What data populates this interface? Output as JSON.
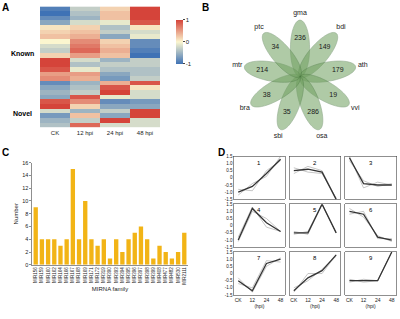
{
  "chart_data": [
    {
      "type": "heatmap",
      "panel_label": "A",
      "x": [
        "CK",
        "12 hpi",
        "24 hpi",
        "48 hpi"
      ],
      "groups": [
        {
          "label": "Known",
          "z": [
            [
              -0.9,
              -0.3,
              0.2,
              1.0
            ],
            [
              -1.0,
              -0.4,
              0.3,
              1.0
            ],
            [
              -0.8,
              -0.5,
              0.3,
              1.0
            ],
            [
              -0.6,
              -0.2,
              -0.1,
              0.9
            ],
            [
              0.1,
              0.2,
              -0.4,
              0.1
            ],
            [
              0.2,
              0.3,
              -0.3,
              -0.2
            ],
            [
              0.3,
              0.4,
              -0.6,
              -0.1
            ],
            [
              0.0,
              0.6,
              0.2,
              -0.8
            ],
            [
              -0.2,
              0.7,
              0.3,
              -0.8
            ],
            [
              -0.3,
              0.8,
              0.4,
              -0.9
            ],
            [
              0.2,
              0.5,
              0.3,
              -1.0
            ],
            [
              1.0,
              -0.2,
              -0.5,
              -0.3
            ],
            [
              1.0,
              -0.4,
              -0.3,
              -0.3
            ],
            [
              0.9,
              -0.1,
              -0.4,
              -0.4
            ],
            [
              0.5,
              0.5,
              -0.6,
              -0.4
            ],
            [
              0.6,
              0.4,
              -0.7,
              -0.3
            ],
            [
              -0.8,
              -0.5,
              0.4,
              0.9
            ],
            [
              -0.6,
              -0.4,
              0.9,
              0.1
            ],
            [
              -0.5,
              -0.3,
              1.0,
              -0.2
            ],
            [
              -0.6,
              0.9,
              -0.1,
              -0.2
            ]
          ]
        },
        {
          "label": "Novel",
          "z": [
            [
              0.9,
              0.6,
              -0.8,
              -0.7
            ],
            [
              1.0,
              0.2,
              -0.6,
              -0.6
            ],
            [
              -0.2,
              -0.5,
              -0.3,
              1.0
            ],
            [
              -0.7,
              0.3,
              -0.6,
              1.0
            ],
            [
              -0.5,
              -0.3,
              1.0,
              -0.2
            ],
            [
              -0.4,
              0.8,
              -0.2,
              -0.2
            ]
          ]
        }
      ],
      "colors": [
        "#3f72b5",
        "#fbf6cf",
        "#d5443a"
      ],
      "colorbar_range": [
        -1,
        1
      ],
      "colorbar_ticks": [
        1,
        0,
        -1
      ],
      "tick_labels": "x"
    },
    {
      "type": "flower",
      "panel_label": "B",
      "color": "#6f9f5f",
      "sets": [
        {
          "label": "gma",
          "value": 236
        },
        {
          "label": "bdi",
          "value": 149
        },
        {
          "label": "ath",
          "value": 179
        },
        {
          "label": "vvi",
          "value": 19
        },
        {
          "label": "osa",
          "value": 286
        },
        {
          "label": "sbi",
          "value": 35
        },
        {
          "label": "bra",
          "value": 38
        },
        {
          "label": "mtr",
          "value": 214
        },
        {
          "label": "ptc",
          "value": 34
        }
      ]
    },
    {
      "type": "bar",
      "panel_label": "C",
      "color": "#f2b416",
      "xlabel": "MIRNA family",
      "ylabel": "Number",
      "categories": [
        "MIR156",
        "MIR159",
        "MIR160",
        "MIR162",
        "MIR164",
        "MIR166",
        "MIR167",
        "MIR168",
        "MIR169",
        "MIR171",
        "MIR172",
        "MIR319",
        "MIR390",
        "MIR393",
        "MIR394",
        "MIR395",
        "MIR396",
        "MIR397",
        "MIR398",
        "MIR399",
        "MIR408",
        "MIR477",
        "MIR482",
        "MIR530",
        "MIR2111"
      ],
      "values": [
        9,
        4,
        4,
        4,
        3,
        4,
        15,
        4,
        10,
        4,
        3,
        4,
        1,
        4,
        2,
        4,
        5,
        6,
        4,
        1,
        3,
        2,
        1,
        2,
        5
      ],
      "ylim": [
        0,
        16
      ],
      "yticks": [
        0,
        2,
        4,
        6,
        8,
        10,
        12,
        14,
        16
      ],
      "grid": false
    },
    {
      "type": "line",
      "panel_label": "D",
      "xlabel": "(hpi)",
      "x": [
        "CK",
        "12",
        "24",
        "48"
      ],
      "ylim": [
        -1.5,
        1.5
      ],
      "yticks": [
        -1.5,
        {
          "value": -1,
          "label": "-1.0"
        },
        -0.5,
        0,
        0.5,
        {
          "value": 1,
          "label": "1.0"
        },
        1.5
      ],
      "grid": false,
      "panels": [
        {
          "label": "1",
          "series": [
            {
              "values": [
                -1.2,
                -0.4,
                0.1,
                1.5
              ],
              "color": "#a0a0a0",
              "line_style": "thin"
            },
            {
              "values": [
                -0.8,
                -0.9,
                0.5,
                1.2
              ],
              "color": "#a0a0a0",
              "line_style": "thin"
            },
            {
              "values": [
                -1.0,
                -0.6,
                0.3,
                1.3
              ],
              "color": "#333333",
              "line_style": "thick"
            }
          ]
        },
        {
          "label": "2",
          "series": [
            {
              "values": [
                0.7,
                0.4,
                0.3,
                -1.4
              ],
              "color": "#a0a0a0",
              "line_style": "thin"
            },
            {
              "values": [
                0.3,
                0.8,
                0.5,
                -1.5
              ],
              "color": "#a0a0a0",
              "line_style": "thin"
            },
            {
              "values": [
                0.5,
                0.6,
                0.4,
                -1.5
              ],
              "color": "#333333",
              "line_style": "thick"
            }
          ]
        },
        {
          "label": "3",
          "series": [
            {
              "values": [
                1.5,
                -0.7,
                -0.3,
                -0.5
              ],
              "color": "#a0a0a0",
              "line_style": "thin"
            },
            {
              "values": [
                1.2,
                -0.2,
                -0.6,
                -0.4
              ],
              "color": "#a0a0a0",
              "line_style": "thin"
            },
            {
              "values": [
                1.4,
                -0.4,
                -0.5,
                -0.5
              ],
              "color": "#333333",
              "line_style": "thick"
            }
          ]
        },
        {
          "label": "4",
          "series": [
            {
              "values": [
                -0.8,
                1.3,
                -0.1,
                -0.4
              ],
              "color": "#a0a0a0",
              "line_style": "thin"
            },
            {
              "values": [
                -1.1,
                1.0,
                0.5,
                -0.4
              ],
              "color": "#a0a0a0",
              "line_style": "thin"
            },
            {
              "values": [
                -1.0,
                1.2,
                0.2,
                -0.4
              ],
              "color": "#333333",
              "line_style": "thick"
            }
          ]
        },
        {
          "label": "5",
          "series": [
            {
              "values": [
                -0.6,
                -0.4,
                1.5,
                -0.5
              ],
              "color": "#a0a0a0",
              "line_style": "thin"
            },
            {
              "values": [
                -0.4,
                -0.6,
                1.5,
                -0.5
              ],
              "color": "#a0a0a0",
              "line_style": "thin"
            },
            {
              "values": [
                -0.5,
                -0.5,
                1.5,
                -0.5
              ],
              "color": "#333333",
              "line_style": "thick"
            }
          ]
        },
        {
          "label": "6",
          "series": [
            {
              "values": [
                1.2,
                0.6,
                -0.7,
                -1.1
              ],
              "color": "#a0a0a0",
              "line_style": "thin"
            },
            {
              "values": [
                0.8,
                1.0,
                -0.9,
                -0.9
              ],
              "color": "#a0a0a0",
              "line_style": "thin"
            },
            {
              "values": [
                1.0,
                0.8,
                -0.8,
                -1.0
              ],
              "color": "#333333",
              "line_style": "thick"
            }
          ]
        },
        {
          "label": "7",
          "series": [
            {
              "values": [
                -0.3,
                -1.3,
                0.5,
                1.1
              ],
              "color": "#a0a0a0",
              "line_style": "thin"
            },
            {
              "values": [
                -0.7,
                -1.0,
                0.9,
                0.8
              ],
              "color": "#a0a0a0",
              "line_style": "thin"
            },
            {
              "values": [
                -0.5,
                -1.2,
                0.7,
                1.0
              ],
              "color": "#333333",
              "line_style": "thick"
            }
          ]
        },
        {
          "label": "8",
          "series": [
            {
              "values": [
                -1.0,
                -0.5,
                0.3,
                1.2
              ],
              "color": "#a0a0a0",
              "line_style": "thin"
            },
            {
              "values": [
                -1.3,
                0.0,
                0.0,
                1.3
              ],
              "color": "#a0a0a0",
              "line_style": "thin"
            },
            {
              "values": [
                -1.2,
                -0.3,
                0.2,
                1.3
              ],
              "color": "#333333",
              "line_style": "thick"
            }
          ]
        },
        {
          "label": "9",
          "series": [
            {
              "values": [
                -0.6,
                -0.4,
                -0.5,
                1.5
              ],
              "color": "#a0a0a0",
              "line_style": "thin"
            },
            {
              "values": [
                -0.4,
                -0.6,
                -0.5,
                1.5
              ],
              "color": "#a0a0a0",
              "line_style": "thin"
            },
            {
              "values": [
                -0.5,
                -0.5,
                -0.5,
                1.5
              ],
              "color": "#333333",
              "line_style": "thick"
            }
          ]
        }
      ]
    }
  ]
}
